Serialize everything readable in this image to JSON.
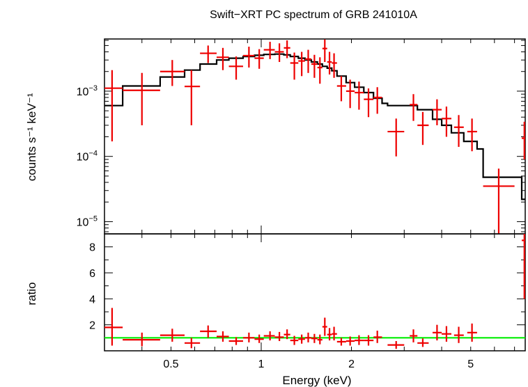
{
  "chart_data": [
    {
      "type": "scatter",
      "panel": "spectrum",
      "title": "Swift−XRT PC spectrum of GRB 241010A",
      "xlabel": "",
      "ylabel": "counts s⁻¹ keV⁻¹",
      "xscale": "log",
      "yscale": "log",
      "xlim": [
        0.3,
        7.6
      ],
      "ylim": [
        6.5e-06,
        0.0063
      ],
      "y_tick_labels": [
        {
          "value": 0.001,
          "base": "10",
          "exp": "−3"
        },
        {
          "value": 0.0001,
          "base": "10",
          "exp": "−4"
        },
        {
          "value": 1e-05,
          "base": "10",
          "exp": "−5"
        }
      ],
      "colors": {
        "data": "#ee0000",
        "model": "#000000"
      },
      "series": [
        {
          "kind": "data",
          "points": [
            {
              "x": 0.318,
              "xlo": 0.3,
              "xhi": 0.345,
              "y": 0.00111,
              "ylo": 0.00017,
              "yhi": 0.0021
            },
            {
              "x": 0.4,
              "xlo": 0.345,
              "xhi": 0.46,
              "y": 0.00103,
              "ylo": 0.0003,
              "yhi": 0.0019
            },
            {
              "x": 0.505,
              "xlo": 0.46,
              "xhi": 0.555,
              "y": 0.002,
              "ylo": 0.0012,
              "yhi": 0.003
            },
            {
              "x": 0.585,
              "xlo": 0.555,
              "xhi": 0.625,
              "y": 0.00118,
              "ylo": 0.0003,
              "yhi": 0.0021
            },
            {
              "x": 0.665,
              "xlo": 0.625,
              "xhi": 0.71,
              "y": 0.0038,
              "ylo": 0.0027,
              "yhi": 0.005
            },
            {
              "x": 0.745,
              "xlo": 0.71,
              "xhi": 0.78,
              "y": 0.0033,
              "ylo": 0.0021,
              "yhi": 0.0046
            },
            {
              "x": 0.825,
              "xlo": 0.78,
              "xhi": 0.87,
              "y": 0.0024,
              "ylo": 0.0015,
              "yhi": 0.0034
            },
            {
              "x": 0.91,
              "xlo": 0.87,
              "xhi": 0.95,
              "y": 0.0035,
              "ylo": 0.0023,
              "yhi": 0.0048
            },
            {
              "x": 0.985,
              "xlo": 0.95,
              "xhi": 1.02,
              "y": 0.0032,
              "ylo": 0.0022,
              "yhi": 0.0044
            },
            {
              "x": 1.07,
              "xlo": 1.02,
              "xhi": 1.11,
              "y": 0.0043,
              "ylo": 0.0031,
              "yhi": 0.0057
            },
            {
              "x": 1.15,
              "xlo": 1.11,
              "xhi": 1.19,
              "y": 0.004,
              "ylo": 0.0028,
              "yhi": 0.0054
            },
            {
              "x": 1.22,
              "xlo": 1.19,
              "xhi": 1.25,
              "y": 0.0046,
              "ylo": 0.0032,
              "yhi": 0.006
            },
            {
              "x": 1.29,
              "xlo": 1.25,
              "xhi": 1.33,
              "y": 0.0027,
              "ylo": 0.0015,
              "yhi": 0.0039
            },
            {
              "x": 1.365,
              "xlo": 1.33,
              "xhi": 1.4,
              "y": 0.0029,
              "ylo": 0.0017,
              "yhi": 0.004
            },
            {
              "x": 1.435,
              "xlo": 1.4,
              "xhi": 1.47,
              "y": 0.0031,
              "ylo": 0.0019,
              "yhi": 0.0043
            },
            {
              "x": 1.505,
              "xlo": 1.47,
              "xhi": 1.54,
              "y": 0.0026,
              "ylo": 0.0016,
              "yhi": 0.0036
            },
            {
              "x": 1.57,
              "xlo": 1.54,
              "xhi": 1.6,
              "y": 0.0023,
              "ylo": 0.0013,
              "yhi": 0.0033
            },
            {
              "x": 1.63,
              "xlo": 1.6,
              "xhi": 1.66,
              "y": 0.0045,
              "ylo": 0.0028,
              "yhi": 0.0062
            },
            {
              "x": 1.69,
              "xlo": 1.66,
              "xhi": 1.72,
              "y": 0.0028,
              "ylo": 0.0018,
              "yhi": 0.004
            },
            {
              "x": 1.75,
              "xlo": 1.72,
              "xhi": 1.79,
              "y": 0.0027,
              "ylo": 0.0016,
              "yhi": 0.0038
            },
            {
              "x": 1.85,
              "xlo": 1.79,
              "xhi": 1.92,
              "y": 0.0012,
              "ylo": 0.0007,
              "yhi": 0.0017
            },
            {
              "x": 1.98,
              "xlo": 1.92,
              "xhi": 2.05,
              "y": 0.001,
              "ylo": 0.00055,
              "yhi": 0.0015
            },
            {
              "x": 2.12,
              "xlo": 2.05,
              "xhi": 2.2,
              "y": 0.00095,
              "ylo": 0.00052,
              "yhi": 0.0014
            },
            {
              "x": 2.28,
              "xlo": 2.2,
              "xhi": 2.37,
              "y": 0.00075,
              "ylo": 0.0004,
              "yhi": 0.0011
            },
            {
              "x": 2.44,
              "xlo": 2.37,
              "xhi": 2.53,
              "y": 0.0008,
              "ylo": 0.00045,
              "yhi": 0.00115
            },
            {
              "x": 2.82,
              "xlo": 2.64,
              "xhi": 3.0,
              "y": 0.00024,
              "ylo": 0.0001,
              "yhi": 0.00038
            },
            {
              "x": 3.22,
              "xlo": 3.13,
              "xhi": 3.32,
              "y": 0.00062,
              "ylo": 0.00035,
              "yhi": 0.0009
            },
            {
              "x": 3.46,
              "xlo": 3.32,
              "xhi": 3.62,
              "y": 0.0003,
              "ylo": 0.00015,
              "yhi": 0.00048
            },
            {
              "x": 3.86,
              "xlo": 3.73,
              "xhi": 4.0,
              "y": 0.00052,
              "ylo": 0.0003,
              "yhi": 0.00075
            },
            {
              "x": 4.15,
              "xlo": 4.0,
              "xhi": 4.31,
              "y": 0.00038,
              "ylo": 0.0002,
              "yhi": 0.00058
            },
            {
              "x": 4.56,
              "xlo": 4.4,
              "xhi": 4.74,
              "y": 0.00028,
              "ylo": 0.00014,
              "yhi": 0.00043
            },
            {
              "x": 5.05,
              "xlo": 4.87,
              "xhi": 5.25,
              "y": 0.00024,
              "ylo": 0.00012,
              "yhi": 0.00038
            },
            {
              "x": 6.2,
              "xlo": 5.5,
              "xhi": 7.0,
              "y": 3.5e-05,
              "ylo": 6e-06,
              "yhi": 6.5e-05
            },
            {
              "x": 7.55,
              "xlo": 7.4,
              "xhi": 7.6,
              "y": 0.00019,
              "ylo": 9e-05,
              "yhi": 0.00034
            }
          ]
        },
        {
          "kind": "model",
          "steps": [
            {
              "x0": 0.3,
              "x1": 0.345,
              "y": 0.0006
            },
            {
              "x0": 0.345,
              "x1": 0.46,
              "y": 0.0012
            },
            {
              "x0": 0.46,
              "x1": 0.555,
              "y": 0.00165
            },
            {
              "x0": 0.555,
              "x1": 0.625,
              "y": 0.0021
            },
            {
              "x0": 0.625,
              "x1": 0.71,
              "y": 0.0026
            },
            {
              "x0": 0.71,
              "x1": 0.78,
              "y": 0.003
            },
            {
              "x0": 0.78,
              "x1": 0.87,
              "y": 0.0032
            },
            {
              "x0": 0.87,
              "x1": 0.95,
              "y": 0.0034
            },
            {
              "x0": 0.95,
              "x1": 1.02,
              "y": 0.00355
            },
            {
              "x0": 1.02,
              "x1": 1.11,
              "y": 0.00365
            },
            {
              "x0": 1.11,
              "x1": 1.19,
              "y": 0.0037
            },
            {
              "x0": 1.19,
              "x1": 1.25,
              "y": 0.0036
            },
            {
              "x0": 1.25,
              "x1": 1.33,
              "y": 0.0034
            },
            {
              "x0": 1.33,
              "x1": 1.4,
              "y": 0.0032
            },
            {
              "x0": 1.4,
              "x1": 1.47,
              "y": 0.003
            },
            {
              "x0": 1.47,
              "x1": 1.54,
              "y": 0.0028
            },
            {
              "x0": 1.54,
              "x1": 1.6,
              "y": 0.0026
            },
            {
              "x0": 1.6,
              "x1": 1.66,
              "y": 0.0024
            },
            {
              "x0": 1.66,
              "x1": 1.72,
              "y": 0.00225
            },
            {
              "x0": 1.72,
              "x1": 1.79,
              "y": 0.00205
            },
            {
              "x0": 1.79,
              "x1": 1.92,
              "y": 0.0017
            },
            {
              "x0": 1.92,
              "x1": 2.05,
              "y": 0.00135
            },
            {
              "x0": 2.05,
              "x1": 2.2,
              "y": 0.00115
            },
            {
              "x0": 2.2,
              "x1": 2.37,
              "y": 0.00095
            },
            {
              "x0": 2.37,
              "x1": 2.53,
              "y": 0.00078
            },
            {
              "x0": 2.53,
              "x1": 2.64,
              "y": 0.00065
            },
            {
              "x0": 2.64,
              "x1": 3.32,
              "y": 0.0006
            },
            {
              "x0": 3.32,
              "x1": 3.73,
              "y": 0.00052
            },
            {
              "x0": 3.73,
              "x1": 4.0,
              "y": 0.00037
            },
            {
              "x0": 4.0,
              "x1": 4.31,
              "y": 0.0003
            },
            {
              "x0": 4.31,
              "x1": 4.74,
              "y": 0.00023
            },
            {
              "x0": 4.74,
              "x1": 5.25,
              "y": 0.00017
            },
            {
              "x0": 5.25,
              "x1": 5.5,
              "y": 0.00013
            },
            {
              "x0": 5.5,
              "x1": 7.4,
              "y": 4.8e-05
            },
            {
              "x0": 7.4,
              "x1": 7.6,
              "y": 2.2e-05
            }
          ]
        }
      ]
    },
    {
      "type": "scatter",
      "panel": "ratio",
      "xlabel": "Energy (keV)",
      "ylabel": "ratio",
      "xscale": "log",
      "yscale": "linear",
      "xlim": [
        0.3,
        7.6
      ],
      "ylim": [
        0.0,
        9.0
      ],
      "x_tick_labels": [
        {
          "value": 0.5,
          "label": "0.5"
        },
        {
          "value": 1,
          "label": "1"
        },
        {
          "value": 2,
          "label": "2"
        },
        {
          "value": 5,
          "label": "5"
        }
      ],
      "y_tick_labels": [
        {
          "value": 2,
          "label": "2"
        },
        {
          "value": 4,
          "label": "4"
        },
        {
          "value": 6,
          "label": "6"
        },
        {
          "value": 8,
          "label": "8"
        }
      ],
      "reference_line": {
        "y": 1,
        "color": "#00ee00"
      },
      "colors": {
        "data": "#ee0000"
      },
      "points": [
        {
          "x": 0.318,
          "xlo": 0.3,
          "xhi": 0.345,
          "y": 1.8,
          "ylo": 0.4,
          "yhi": 3.3
        },
        {
          "x": 0.4,
          "xlo": 0.345,
          "xhi": 0.46,
          "y": 0.85,
          "ylo": 0.35,
          "yhi": 1.4
        },
        {
          "x": 0.505,
          "xlo": 0.46,
          "xhi": 0.555,
          "y": 1.2,
          "ylo": 0.7,
          "yhi": 1.7
        },
        {
          "x": 0.585,
          "xlo": 0.555,
          "xhi": 0.625,
          "y": 0.6,
          "ylo": 0.2,
          "yhi": 1.0
        },
        {
          "x": 0.665,
          "xlo": 0.625,
          "xhi": 0.71,
          "y": 1.5,
          "ylo": 1.0,
          "yhi": 1.95
        },
        {
          "x": 0.745,
          "xlo": 0.71,
          "xhi": 0.78,
          "y": 1.1,
          "ylo": 0.7,
          "yhi": 1.5
        },
        {
          "x": 0.825,
          "xlo": 0.78,
          "xhi": 0.87,
          "y": 0.75,
          "ylo": 0.45,
          "yhi": 1.05
        },
        {
          "x": 0.91,
          "xlo": 0.87,
          "xhi": 0.95,
          "y": 1.0,
          "ylo": 0.65,
          "yhi": 1.4
        },
        {
          "x": 0.985,
          "xlo": 0.95,
          "xhi": 1.02,
          "y": 0.9,
          "ylo": 0.6,
          "yhi": 1.25
        },
        {
          "x": 1.07,
          "xlo": 1.02,
          "xhi": 1.11,
          "y": 1.15,
          "ylo": 0.8,
          "yhi": 1.5
        },
        {
          "x": 1.15,
          "xlo": 1.11,
          "xhi": 1.19,
          "y": 1.05,
          "ylo": 0.75,
          "yhi": 1.45
        },
        {
          "x": 1.22,
          "xlo": 1.19,
          "xhi": 1.25,
          "y": 1.25,
          "ylo": 0.9,
          "yhi": 1.65
        },
        {
          "x": 1.29,
          "xlo": 1.25,
          "xhi": 1.33,
          "y": 0.8,
          "ylo": 0.45,
          "yhi": 1.15
        },
        {
          "x": 1.365,
          "xlo": 1.33,
          "xhi": 1.4,
          "y": 0.9,
          "ylo": 0.55,
          "yhi": 1.25
        },
        {
          "x": 1.435,
          "xlo": 1.4,
          "xhi": 1.47,
          "y": 1.0,
          "ylo": 0.65,
          "yhi": 1.4
        },
        {
          "x": 1.505,
          "xlo": 1.47,
          "xhi": 1.54,
          "y": 0.95,
          "ylo": 0.6,
          "yhi": 1.3
        },
        {
          "x": 1.57,
          "xlo": 1.54,
          "xhi": 1.6,
          "y": 0.85,
          "ylo": 0.5,
          "yhi": 1.25
        },
        {
          "x": 1.63,
          "xlo": 1.6,
          "xhi": 1.66,
          "y": 1.85,
          "ylo": 1.15,
          "yhi": 2.55
        },
        {
          "x": 1.69,
          "xlo": 1.66,
          "xhi": 1.72,
          "y": 1.25,
          "ylo": 0.8,
          "yhi": 1.75
        },
        {
          "x": 1.75,
          "xlo": 1.72,
          "xhi": 1.79,
          "y": 1.3,
          "ylo": 0.8,
          "yhi": 1.85
        },
        {
          "x": 1.85,
          "xlo": 1.79,
          "xhi": 1.92,
          "y": 0.7,
          "ylo": 0.4,
          "yhi": 1.0
        },
        {
          "x": 1.98,
          "xlo": 1.92,
          "xhi": 2.05,
          "y": 0.75,
          "ylo": 0.4,
          "yhi": 1.1
        },
        {
          "x": 2.12,
          "xlo": 2.05,
          "xhi": 2.2,
          "y": 0.8,
          "ylo": 0.45,
          "yhi": 1.2
        },
        {
          "x": 2.28,
          "xlo": 2.2,
          "xhi": 2.37,
          "y": 0.8,
          "ylo": 0.4,
          "yhi": 1.2
        },
        {
          "x": 2.44,
          "xlo": 2.37,
          "xhi": 2.53,
          "y": 1.05,
          "ylo": 0.6,
          "yhi": 1.55
        },
        {
          "x": 2.82,
          "xlo": 2.64,
          "xhi": 3.0,
          "y": 0.45,
          "ylo": 0.15,
          "yhi": 0.75
        },
        {
          "x": 3.22,
          "xlo": 3.13,
          "xhi": 3.32,
          "y": 1.15,
          "ylo": 0.65,
          "yhi": 1.65
        },
        {
          "x": 3.46,
          "xlo": 3.32,
          "xhi": 3.62,
          "y": 0.6,
          "ylo": 0.3,
          "yhi": 0.95
        },
        {
          "x": 3.86,
          "xlo": 3.73,
          "xhi": 4.0,
          "y": 1.4,
          "ylo": 0.8,
          "yhi": 2.0
        },
        {
          "x": 4.15,
          "xlo": 4.0,
          "xhi": 4.31,
          "y": 1.3,
          "ylo": 0.7,
          "yhi": 1.9
        },
        {
          "x": 4.56,
          "xlo": 4.4,
          "xhi": 4.74,
          "y": 1.2,
          "ylo": 0.6,
          "yhi": 1.85
        },
        {
          "x": 5.05,
          "xlo": 4.87,
          "xhi": 5.25,
          "y": 1.4,
          "ylo": 0.7,
          "yhi": 2.1
        },
        {
          "x": 7.55,
          "xlo": 7.4,
          "xhi": 7.6,
          "y": 8.5,
          "ylo": 4.0,
          "yhi": 9.0
        }
      ]
    }
  ]
}
